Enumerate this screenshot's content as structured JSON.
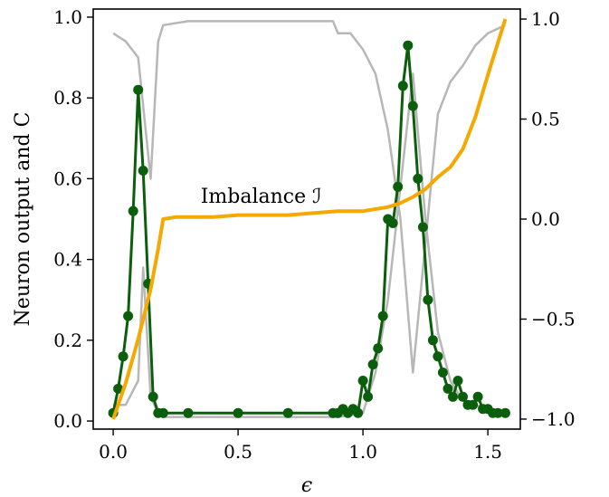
{
  "chart_data": {
    "type": "line",
    "xlabel": "ϵ",
    "ylabel": "Neuron output and C",
    "annotation": "Imbalance ℐ",
    "xlim": [
      -0.08,
      1.63
    ],
    "ylim": [
      -0.02,
      1.02
    ],
    "y2lim": [
      -1.05,
      1.05
    ],
    "x_ticks": [
      "0.0",
      "0.5",
      "1.0",
      "1.5"
    ],
    "y_ticks": [
      "0.0",
      "0.2",
      "0.4",
      "0.6",
      "0.8",
      "1.0"
    ],
    "y2_ticks": [
      "−1.0",
      "−0.5",
      "0.0",
      "0.5",
      "1.0"
    ],
    "colors": {
      "neuron": "#0b5e0b",
      "imbalance": "#f5a800",
      "grey": "#b7b7b7"
    },
    "series": [
      {
        "axis": "left",
        "x": [
          0.0,
          0.02,
          0.04,
          0.06,
          0.08,
          0.1,
          0.12,
          0.14,
          0.16,
          0.18,
          0.2,
          0.3,
          0.5,
          0.7,
          0.88,
          0.9,
          0.92,
          0.94,
          0.96,
          0.98,
          1.0,
          1.02,
          1.04,
          1.06,
          1.08,
          1.1,
          1.12,
          1.14,
          1.16,
          1.18,
          1.2,
          1.22,
          1.24,
          1.26,
          1.28,
          1.3,
          1.32,
          1.34,
          1.36,
          1.38,
          1.4,
          1.42,
          1.44,
          1.46,
          1.48,
          1.5,
          1.52,
          1.54,
          1.57
        ],
        "y": [
          0.02,
          0.08,
          0.16,
          0.26,
          0.52,
          0.82,
          0.62,
          0.34,
          0.06,
          0.02,
          0.02,
          0.02,
          0.02,
          0.02,
          0.02,
          0.02,
          0.03,
          0.02,
          0.03,
          0.02,
          0.1,
          0.06,
          0.14,
          0.18,
          0.26,
          0.5,
          0.49,
          0.58,
          0.83,
          0.93,
          0.78,
          0.6,
          0.48,
          0.3,
          0.2,
          0.16,
          0.12,
          0.08,
          0.06,
          0.1,
          0.06,
          0.04,
          0.04,
          0.06,
          0.03,
          0.03,
          0.02,
          0.02,
          0.02
        ]
      },
      {
        "axis": "right",
        "x": [
          0.0,
          0.05,
          0.1,
          0.15,
          0.18,
          0.2,
          0.25,
          0.3,
          0.4,
          0.5,
          0.6,
          0.7,
          0.8,
          0.9,
          1.0,
          1.05,
          1.1,
          1.15,
          1.2,
          1.25,
          1.3,
          1.35,
          1.4,
          1.45,
          1.5,
          1.55,
          1.57
        ],
        "y": [
          -1.0,
          -0.82,
          -0.6,
          -0.35,
          -0.15,
          0.0,
          0.01,
          0.01,
          0.01,
          0.02,
          0.02,
          0.02,
          0.03,
          0.04,
          0.04,
          0.05,
          0.06,
          0.08,
          0.11,
          0.15,
          0.21,
          0.26,
          0.35,
          0.51,
          0.72,
          0.92,
          1.0
        ]
      },
      {
        "axis": "left",
        "x": [
          0.0,
          0.05,
          0.1,
          0.15,
          0.18,
          0.2,
          0.3,
          0.5,
          0.7,
          0.88,
          0.9,
          0.95,
          1.0,
          1.05,
          1.1,
          1.15,
          1.2,
          1.25,
          1.3,
          1.35,
          1.4,
          1.45,
          1.5,
          1.57
        ],
        "y": [
          0.96,
          0.94,
          0.9,
          0.6,
          0.94,
          0.98,
          0.99,
          0.99,
          0.99,
          0.99,
          0.96,
          0.96,
          0.92,
          0.86,
          0.72,
          0.5,
          0.12,
          0.44,
          0.76,
          0.84,
          0.88,
          0.93,
          0.96,
          0.98
        ]
      },
      {
        "axis": "left",
        "x": [
          0.0,
          0.05,
          0.1,
          0.12,
          0.15,
          0.18,
          0.2,
          0.3,
          0.5,
          0.7,
          0.9,
          1.0,
          1.05,
          1.1,
          1.15,
          1.2,
          1.25,
          1.3,
          1.35,
          1.4,
          1.45,
          1.5,
          1.57
        ],
        "y": [
          0.04,
          0.04,
          0.1,
          0.38,
          0.06,
          0.02,
          0.01,
          0.01,
          0.01,
          0.01,
          0.01,
          0.02,
          0.12,
          0.3,
          0.58,
          0.86,
          0.5,
          0.22,
          0.1,
          0.05,
          0.04,
          0.03,
          0.02
        ]
      }
    ]
  }
}
